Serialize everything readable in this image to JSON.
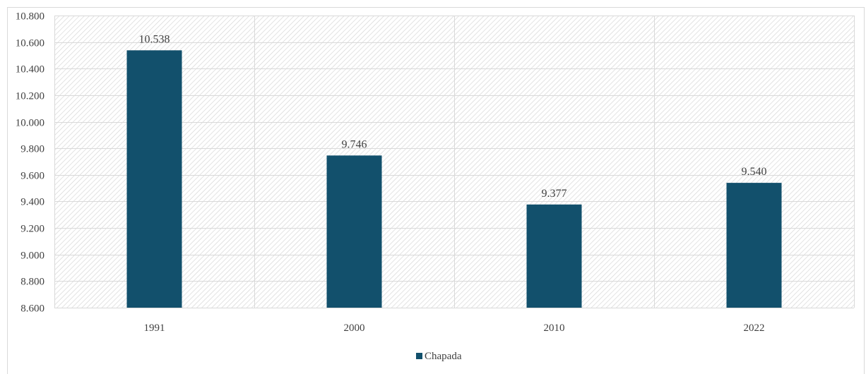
{
  "chart_data": {
    "type": "bar",
    "title": "",
    "categories": [
      "1991",
      "2000",
      "2010",
      "2022"
    ],
    "series": [
      {
        "name": "Chapada",
        "values": [
          10538,
          9746,
          9377,
          9540
        ],
        "labels": [
          "10.538",
          "9.746",
          "9.377",
          "9.540"
        ],
        "color": "#12506c"
      }
    ],
    "ylim": [
      8600,
      10800
    ],
    "yticks": [
      {
        "value": 8600,
        "label": "8.600"
      },
      {
        "value": 8800,
        "label": "8.800"
      },
      {
        "value": 9000,
        "label": "9.000"
      },
      {
        "value": 9200,
        "label": "9.200"
      },
      {
        "value": 9400,
        "label": "9.400"
      },
      {
        "value": 9600,
        "label": "9.600"
      },
      {
        "value": 9800,
        "label": "9.800"
      },
      {
        "value": 10000,
        "label": "10.000"
      },
      {
        "value": 10200,
        "label": "10.200"
      },
      {
        "value": 10400,
        "label": "10.400"
      },
      {
        "value": 10600,
        "label": "10.600"
      },
      {
        "value": 10800,
        "label": "10.800"
      }
    ],
    "xlabel": "",
    "ylabel": "",
    "grid": true,
    "legend_position": "bottom",
    "plot_background": "hatched"
  }
}
